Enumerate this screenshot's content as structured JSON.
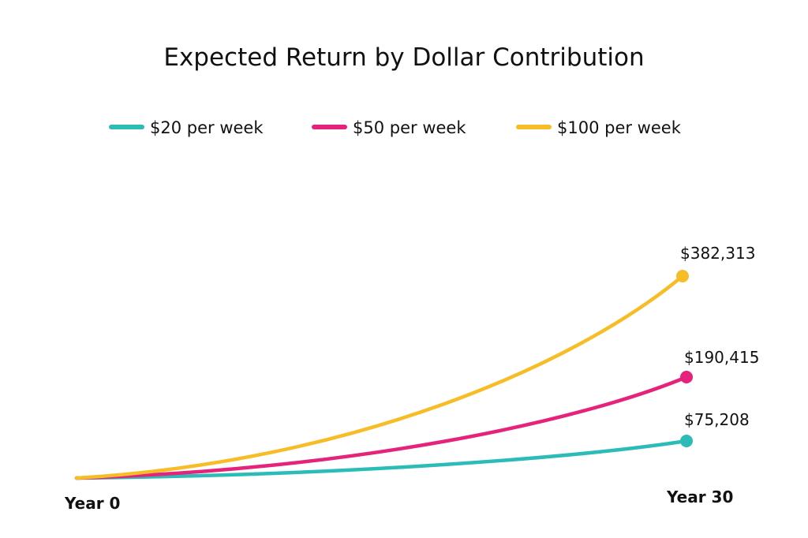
{
  "chart_data": {
    "type": "line",
    "title": "Expected Return by Dollar Contribution",
    "x": [
      0,
      30
    ],
    "x_tick_labels": [
      "Year 0",
      "Year 30"
    ],
    "legend": "top",
    "grid": false,
    "series": [
      {
        "name": "$20 per week",
        "color": "#2bbcb8",
        "start": 0,
        "end": 75208,
        "end_label": "$75,208"
      },
      {
        "name": "$50 per week",
        "color": "#e6237a",
        "start": 0,
        "end": 190415,
        "end_label": "$190,415"
      },
      {
        "name": "$100 per week",
        "color": "#f7bd27",
        "start": 0,
        "end": 382313,
        "end_label": "$382,313"
      }
    ]
  }
}
